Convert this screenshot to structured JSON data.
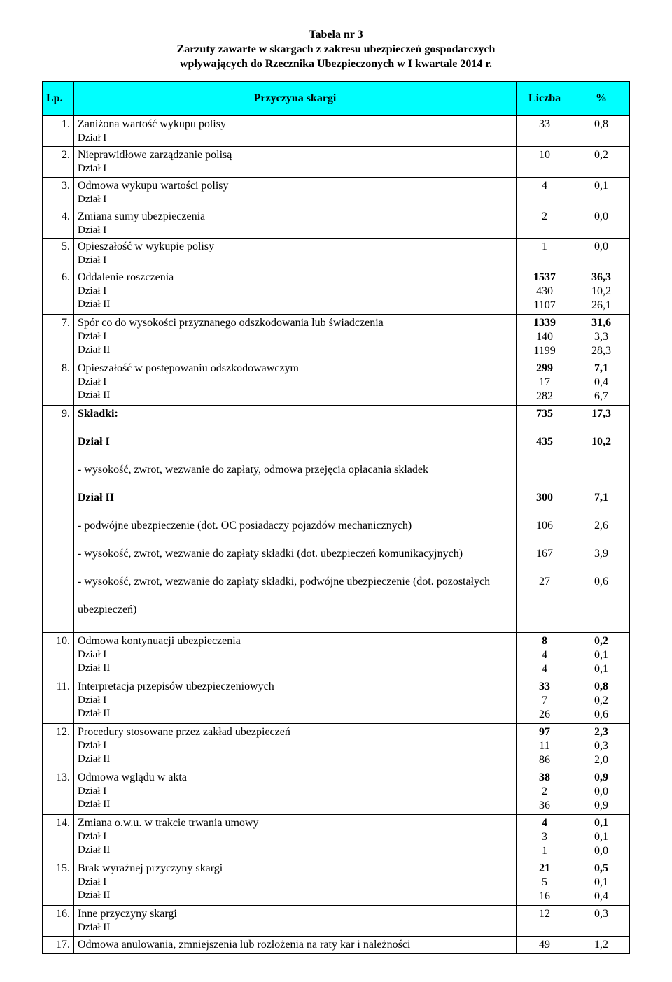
{
  "title": {
    "line1": "Tabela nr 3",
    "line2": "Zarzuty zawarte w skargach z zakresu ubezpieczeń gospodarczych",
    "line3": "wpływających do Rzecznika Ubezpieczonych w I kwartale 2014 r."
  },
  "header": {
    "lp": "Lp.",
    "desc": "Przyczyna skargi",
    "count": "Liczba",
    "pct": "%"
  },
  "rows": [
    {
      "lp": "1.",
      "main": "Zaniżona wartość wykupu polisy",
      "sub": [
        "Dział I"
      ],
      "counts": [
        "33"
      ],
      "pcts": [
        "0,8"
      ]
    },
    {
      "lp": "2.",
      "main": "Nieprawidłowe zarządzanie polisą",
      "sub": [
        "Dział I"
      ],
      "counts": [
        "10"
      ],
      "pcts": [
        "0,2"
      ]
    },
    {
      "lp": "3.",
      "main": "Odmowa wykupu wartości polisy",
      "sub": [
        "Dział I"
      ],
      "counts": [
        "4"
      ],
      "pcts": [
        "0,1"
      ]
    },
    {
      "lp": "4.",
      "main": "Zmiana sumy ubezpieczenia",
      "sub": [
        "Dział I"
      ],
      "counts": [
        "2"
      ],
      "pcts": [
        "0,0"
      ]
    },
    {
      "lp": "5.",
      "main": "Opieszałość w wykupie polisy",
      "sub": [
        "Dział I"
      ],
      "counts": [
        "1"
      ],
      "pcts": [
        "0,0"
      ]
    },
    {
      "lp": "6.",
      "main": "Oddalenie roszczenia",
      "sub": [
        "Dział I",
        "Dział II"
      ],
      "counts": [
        "1537",
        "430",
        "1107"
      ],
      "pcts": [
        "36,3",
        "10,2",
        "26,1"
      ],
      "mainBold": true
    },
    {
      "lp": "7.",
      "main": "Spór co do wysokości przyznanego odszkodowania lub świadczenia",
      "sub": [
        "Dział I",
        "Dział II"
      ],
      "counts": [
        "1339",
        "140",
        "1199"
      ],
      "pcts": [
        "31,6",
        "3,3",
        "28,3"
      ],
      "mainBold": true
    },
    {
      "lp": "8.",
      "main": "Opieszałość w postępowaniu odszkodowawczym",
      "sub": [
        "Dział I",
        "Dział II"
      ],
      "counts": [
        "299",
        "17",
        "282"
      ],
      "pcts": [
        "7,1",
        "0,4",
        "6,7"
      ],
      "mainBold": true
    }
  ],
  "row9": {
    "lp": "9.",
    "lines": [
      {
        "label": "Składki:",
        "count": "735",
        "pct": "17,3",
        "bold": true,
        "gapAfter": true
      },
      {
        "label": "Dział I",
        "count": "435",
        "pct": "10,2",
        "bold": true,
        "gapAfter": true
      },
      {
        "label": "- wysokość, zwrot, wezwanie do zapłaty, odmowa przejęcia opłacania składek",
        "count": "",
        "pct": "",
        "gapAfter": true
      },
      {
        "label": "Dział II",
        "count": "300",
        "pct": "7,1",
        "bold": true,
        "gapAfter": true
      },
      {
        "label": "- podwójne ubezpieczenie (dot. OC posiadaczy pojazdów mechanicznych)",
        "count": "106",
        "pct": "2,6",
        "gapAfter": true
      },
      {
        "label": "- wysokość, zwrot, wezwanie do zapłaty składki (dot. ubezpieczeń komunikacyjnych)",
        "count": "167",
        "pct": "3,9",
        "gapAfter": true
      },
      {
        "label": "- wysokość, zwrot, wezwanie do zapłaty składki, podwójne ubezpieczenie (dot. pozostałych",
        "count": "27",
        "pct": "0,6",
        "gapAfter": true
      },
      {
        "label": "ubezpieczeń)",
        "count": "",
        "pct": "",
        "gapAfter": true
      }
    ]
  },
  "rows2": [
    {
      "lp": "10.",
      "main": "Odmowa kontynuacji ubezpieczenia",
      "sub": [
        "Dział I",
        "Dział II"
      ],
      "counts": [
        "8",
        "4",
        "4"
      ],
      "pcts": [
        "0,2",
        "0,1",
        "0,1"
      ],
      "mainBold": true
    },
    {
      "lp": "11.",
      "main": "Interpretacja przepisów ubezpieczeniowych",
      "sub": [
        "Dział I",
        "Dział II"
      ],
      "counts": [
        "33",
        "7",
        "26"
      ],
      "pcts": [
        "0,8",
        "0,2",
        "0,6"
      ],
      "mainBold": true
    },
    {
      "lp": "12.",
      "main": "Procedury stosowane przez zakład ubezpieczeń",
      "sub": [
        "Dział I",
        "Dział II"
      ],
      "counts": [
        "97",
        "11",
        "86"
      ],
      "pcts": [
        "2,3",
        "0,3",
        "2,0"
      ],
      "mainBold": true
    },
    {
      "lp": "13.",
      "main": "Odmowa wglądu w akta",
      "sub": [
        "Dział I",
        "Dział II"
      ],
      "counts": [
        "38",
        "2",
        "36"
      ],
      "pcts": [
        "0,9",
        "0,0",
        "0,9"
      ],
      "mainBold": true
    },
    {
      "lp": "14.",
      "main": "Zmiana o.w.u. w trakcie trwania umowy",
      "sub": [
        "Dział I",
        "Dział II"
      ],
      "counts": [
        "4",
        "3",
        "1"
      ],
      "pcts": [
        "0,1",
        "0,1",
        "0,0"
      ],
      "mainBold": true
    },
    {
      "lp": "15.",
      "main": "Brak wyraźnej przyczyny skargi",
      "sub": [
        "Dział I",
        "Dział II"
      ],
      "counts": [
        "21",
        "5",
        "16"
      ],
      "pcts": [
        "0,5",
        "0,1",
        "0,4"
      ],
      "mainBold": true
    },
    {
      "lp": "16.",
      "main": "Inne przyczyny skargi",
      "sub": [
        "Dział II"
      ],
      "counts": [
        "12"
      ],
      "pcts": [
        "0,3"
      ]
    },
    {
      "lp": "17.",
      "main": "Odmowa anulowania, zmniejszenia lub rozłożenia na raty kar i należności",
      "sub": [],
      "counts": [
        "49"
      ],
      "pcts": [
        "1,2"
      ]
    }
  ]
}
